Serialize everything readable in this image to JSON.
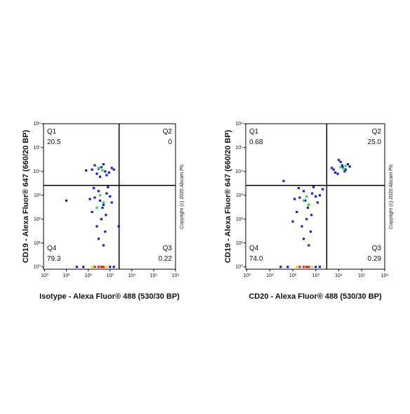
{
  "charts": [
    {
      "type": "scatter",
      "xlabel": "Isotype - Alexa Fluor® 488 (530/30 BP)",
      "ylabel": "CD19 - Alexa Fluor® 647 (660/20 BP)",
      "copyright": "Copyright (c) 2020 Abcam Plc",
      "xscale": "log",
      "yscale": "log",
      "xlim": [
        0.9,
        1000000
      ],
      "ylim": [
        0.8,
        1000000
      ],
      "xticks": [
        {
          "value": 1,
          "label": "10⁰"
        },
        {
          "value": 10,
          "label": "10¹"
        },
        {
          "value": 100,
          "label": "10²"
        },
        {
          "value": 1000,
          "label": "10³"
        },
        {
          "value": 10000,
          "label": "10⁴"
        },
        {
          "value": 100000,
          "label": "10⁵"
        },
        {
          "value": 1000000,
          "label": "10⁶"
        }
      ],
      "yticks": [
        {
          "value": 1,
          "label": "10⁰"
        },
        {
          "value": 10,
          "label": "10¹"
        },
        {
          "value": 100,
          "label": "10²"
        },
        {
          "value": 1000,
          "label": "10³"
        },
        {
          "value": 10000,
          "label": "10⁴"
        },
        {
          "value": 100000,
          "label": "10⁵"
        },
        {
          "value": 1000000,
          "label": "10⁶"
        }
      ],
      "xgate": 2600,
      "ygate": 2600,
      "quadrants": {
        "names": [
          "Q1",
          "Q2",
          "Q3",
          "Q4"
        ],
        "values": [
          20.5,
          0,
          0.22,
          79.3
        ],
        "value_labels": [
          "20.5",
          "0",
          "0.22",
          "79.3"
        ]
      },
      "series": [
        {
          "color": "#1a1ae6",
          "x": [
            150,
            250,
            400,
            600,
            900,
            200,
            350,
            1200,
            80,
            500,
            700,
            1500,
            300,
            200,
            300,
            500,
            150,
            400,
            700,
            250,
            600,
            350,
            1000,
            180,
            450,
            800,
            300,
            500,
            1200,
            120,
            10,
            2500,
            650,
            30,
            60,
            1000,
            1500
          ],
          "values": [
            12000,
            8000,
            15000,
            10000,
            9000,
            18000,
            6000,
            14000,
            11000,
            20000,
            7000,
            12000,
            13000,
            800,
            1500,
            400,
            200,
            100,
            1200,
            50,
            30,
            600,
            900,
            2000,
            300,
            2200,
            15,
            8,
            500,
            700,
            600,
            50,
            150,
            1,
            1,
            1,
            1
          ]
        },
        {
          "color": "#22dd44",
          "x": [
            300,
            450,
            350,
            500,
            250
          ],
          "values": [
            14000,
            11000,
            1000,
            500,
            300
          ]
        },
        {
          "color": "#e8d800",
          "x": [
            150,
            700
          ],
          "values": [
            1,
            1
          ]
        },
        {
          "color": "#e02020",
          "x": [
            200,
            300,
            400,
            500
          ],
          "values": [
            1,
            1,
            1,
            1
          ]
        }
      ]
    },
    {
      "type": "scatter",
      "xlabel": "CD20 - Alexa Fluor® 488 (530/30 BP)",
      "ylabel": "CD19 - Alexa Fluor® 647 (660/20 BP)",
      "copyright": "Copyright (c) 2020 Abcam Plc",
      "xscale": "log",
      "yscale": "log",
      "xlim": [
        0.9,
        1000000
      ],
      "ylim": [
        0.8,
        1000000
      ],
      "xticks": [
        {
          "value": 1,
          "label": "10⁰"
        },
        {
          "value": 10,
          "label": "10¹"
        },
        {
          "value": 100,
          "label": "10²"
        },
        {
          "value": 1000,
          "label": "10³"
        },
        {
          "value": 10000,
          "label": "10⁴"
        },
        {
          "value": 100000,
          "label": "10⁵"
        },
        {
          "value": 1000000,
          "label": "10⁶"
        }
      ],
      "yticks": [
        {
          "value": 1,
          "label": "10⁰"
        },
        {
          "value": 10,
          "label": "10¹"
        },
        {
          "value": 100,
          "label": "10²"
        },
        {
          "value": 1000,
          "label": "10³"
        },
        {
          "value": 10000,
          "label": "10⁴"
        },
        {
          "value": 100000,
          "label": "10⁵"
        },
        {
          "value": 1000000,
          "label": "10⁶"
        }
      ],
      "xgate": 3000,
      "ygate": 2600,
      "quadrants": {
        "names": [
          "Q1",
          "Q2",
          "Q3",
          "Q4"
        ],
        "values": [
          0.68,
          25,
          0.29,
          74
        ],
        "value_labels": [
          "0.68",
          "25.0",
          "0.29",
          "74.0"
        ]
      },
      "series": [
        {
          "color": "#1a1ae6",
          "x": [
            6000,
            9000,
            15000,
            25000,
            12000,
            7000,
            20000,
            30000,
            10000,
            5000,
            18000,
            14000,
            200,
            300,
            500,
            150,
            400,
            700,
            250,
            600,
            350,
            1000,
            180,
            450,
            800,
            300,
            500,
            1200,
            120,
            2000,
            650,
            100,
            1500,
            30,
            60,
            1000,
            1500,
            40
          ],
          "values": [
            12000,
            8000,
            15000,
            20000,
            25000,
            9000,
            12000,
            16000,
            30000,
            14000,
            10000,
            18000,
            800,
            1500,
            400,
            200,
            100,
            1200,
            50,
            30,
            600,
            900,
            2000,
            300,
            2200,
            15,
            8,
            500,
            700,
            1800,
            150,
            80,
            1000,
            1,
            1,
            1,
            1,
            4000
          ]
        },
        {
          "color": "#22dd44",
          "x": [
            12000,
            16000,
            20000,
            300,
            500,
            400
          ],
          "values": [
            15000,
            13000,
            17000,
            600,
            400,
            900
          ]
        },
        {
          "color": "#e8d800",
          "x": [
            150,
            700
          ],
          "values": [
            1,
            1
          ]
        },
        {
          "color": "#e02020",
          "x": [
            200,
            300,
            400,
            500
          ],
          "values": [
            1,
            1,
            1,
            1
          ]
        }
      ]
    }
  ]
}
